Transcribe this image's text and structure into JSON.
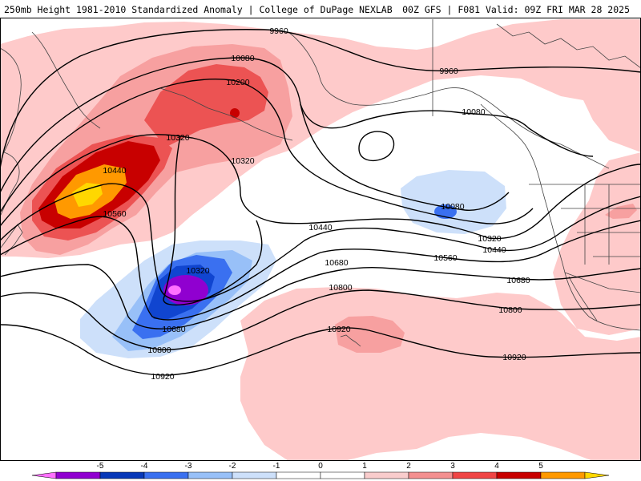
{
  "header": {
    "left_title": "250mb Height 1981-2010 Standardized Anomaly | College of DuPage NEXLAB",
    "right_title": "00Z GFS | F081 Valid: 09Z FRI MAR 28 2025"
  },
  "contours": [
    {
      "label": "9960"
    },
    {
      "label": "9960"
    },
    {
      "label": "10080"
    },
    {
      "label": "10200"
    },
    {
      "label": "10320"
    },
    {
      "label": "10320"
    },
    {
      "label": "10440"
    },
    {
      "label": "10560"
    },
    {
      "label": "10080"
    },
    {
      "label": "10080"
    },
    {
      "label": "10320"
    },
    {
      "label": "10320"
    },
    {
      "label": "10440"
    },
    {
      "label": "10440"
    },
    {
      "label": "10560"
    },
    {
      "label": "10680"
    },
    {
      "label": "10680"
    },
    {
      "label": "10680"
    },
    {
      "label": "10800"
    },
    {
      "label": "10800"
    },
    {
      "label": "10800"
    },
    {
      "label": "10920"
    },
    {
      "label": "10920"
    },
    {
      "label": "10920"
    }
  ],
  "colorbar": {
    "ticks": [
      "-5",
      "-4",
      "-3",
      "-2",
      "-1",
      "0",
      "1",
      "2",
      "3",
      "4",
      "5"
    ],
    "colors": [
      "#ff70ff",
      "#9000d0",
      "#0838b8",
      "#3a70f0",
      "#98c0f8",
      "#cde0fa",
      "#ffffff",
      "#ffffff",
      "#f9cccc",
      "#f49090",
      "#f04545",
      "#c80000",
      "#ff9900",
      "#ffd700"
    ]
  },
  "anomaly_colors": {
    "plus1": "#fecaca",
    "plus2": "#f7a0a0",
    "plus3": "#ec5353",
    "plus4": "#c80000",
    "plus5": "#ff9900",
    "plus6": "#ffd700",
    "minus1": "#cde0fa",
    "minus2": "#98c0f8",
    "minus3": "#3a70f0",
    "minus4": "#1045d0",
    "minus5": "#9000d0",
    "minus6": "#ff70ff"
  }
}
